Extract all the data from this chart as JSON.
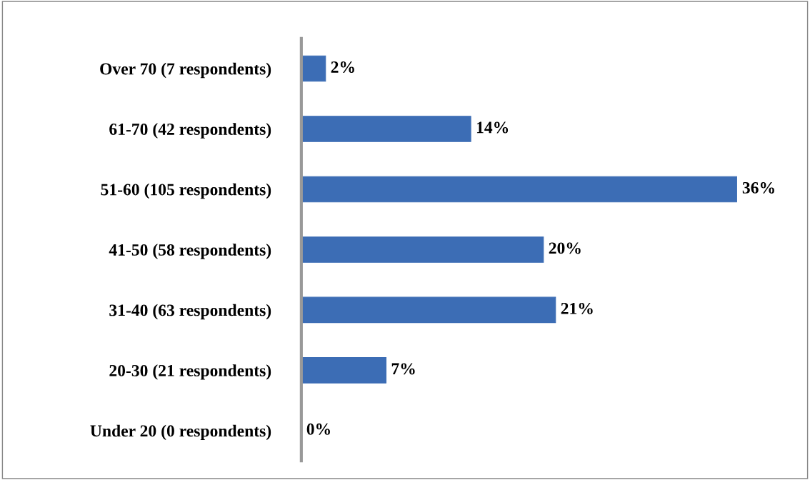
{
  "chart_data": {
    "type": "bar",
    "orientation": "horizontal",
    "categories": [
      "Over 70 (7 respondents)",
      "61-70 (42 respondents)",
      "51-60 (105 respondents)",
      "41-50 (58 respondents)",
      "31-40 (63 respondents)",
      "20-30 (21 respondents)",
      "Under 20 (0 respondents)"
    ],
    "values": [
      2,
      14,
      36,
      20,
      21,
      7,
      0
    ],
    "value_labels": [
      "2%",
      "14%",
      "36%",
      "20%",
      "21%",
      "7%",
      "0%"
    ],
    "color": "#3c6db5",
    "grid": false,
    "legend": false
  }
}
